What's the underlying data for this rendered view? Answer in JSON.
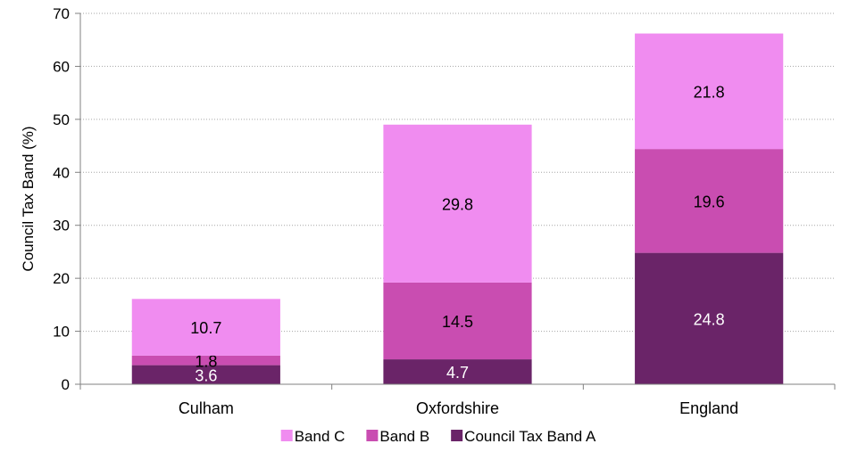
{
  "chart_data": {
    "type": "bar",
    "stacked": true,
    "categories": [
      "Culham",
      "Oxfordshire",
      "England"
    ],
    "series": [
      {
        "name": "Council Tax Band A",
        "values": [
          3.6,
          4.7,
          24.8
        ],
        "color": "#6a2468",
        "label_color": "#ffffff"
      },
      {
        "name": "Band B",
        "values": [
          1.8,
          14.5,
          19.6
        ],
        "color": "#c94db1",
        "label_color": "#000000"
      },
      {
        "name": "Band C",
        "values": [
          10.7,
          29.8,
          21.8
        ],
        "color": "#f08cf0",
        "label_color": "#000000"
      }
    ],
    "legend_order": [
      2,
      1,
      0
    ],
    "ylabel": "Council Tax Band (%)",
    "xlabel": "",
    "ylim": [
      0,
      70
    ],
    "yticks": [
      0,
      10,
      20,
      30,
      40,
      50,
      60,
      70
    ],
    "grid": true,
    "legend_position": "bottom"
  }
}
